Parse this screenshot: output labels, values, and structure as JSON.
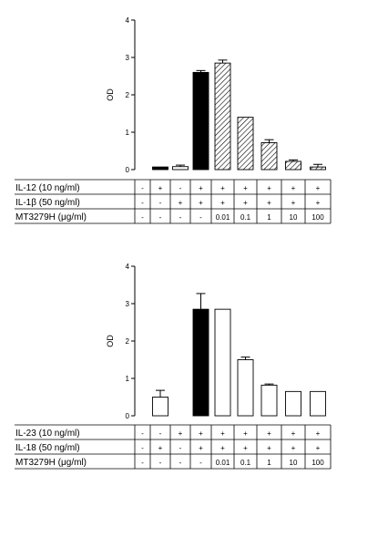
{
  "chart_data": [
    {
      "type": "bar",
      "ylabel": "OD",
      "ylim": [
        0,
        4
      ],
      "yticks": [
        "0",
        "1",
        "2",
        "3",
        "4"
      ],
      "categories": [
        "1",
        "2",
        "3",
        "4",
        "5",
        "6",
        "7",
        "8",
        "9"
      ],
      "values": [
        0,
        0.07,
        0.08,
        2.6,
        2.85,
        1.4,
        0.72,
        0.22,
        0.07
      ],
      "errors": [
        0,
        0,
        0.04,
        0.05,
        0.08,
        0,
        0.08,
        0.04,
        0.07
      ],
      "fills": [
        "none",
        "solid",
        "open",
        "solid",
        "hatched",
        "hatched",
        "hatched",
        "hatched",
        "hatched"
      ],
      "table": [
        {
          "label": "IL-12 (10 ng/ml)",
          "cells": [
            "-",
            "+",
            "-",
            "+",
            "+",
            "+",
            "+",
            "+",
            "+"
          ]
        },
        {
          "label": "IL-1β (50 ng/ml)",
          "cells": [
            "-",
            "-",
            "+",
            "+",
            "+",
            "+",
            "+",
            "+",
            "+"
          ]
        },
        {
          "label": "MT3279H (μg/ml)",
          "cells": [
            "-",
            "-",
            "-",
            "-",
            "0.01",
            "0.1",
            "1",
            "10",
            "100"
          ]
        }
      ]
    },
    {
      "type": "bar",
      "ylabel": "OD",
      "ylim": [
        0,
        4
      ],
      "yticks": [
        "0",
        "1",
        "2",
        "3",
        "4"
      ],
      "categories": [
        "1",
        "2",
        "3",
        "4",
        "5",
        "6",
        "7",
        "8",
        "9"
      ],
      "values": [
        0,
        0.5,
        0,
        2.85,
        2.85,
        1.5,
        0.82,
        0.65,
        0.65
      ],
      "errors": [
        0,
        0.18,
        0,
        0.42,
        0,
        0.07,
        0.03,
        0,
        0
      ],
      "fills": [
        "none",
        "open",
        "none",
        "solid",
        "open",
        "open",
        "open",
        "open",
        "open"
      ],
      "table": [
        {
          "label": "IL-23 (10 ng/ml)",
          "cells": [
            "-",
            "-",
            "+",
            "+",
            "+",
            "+",
            "+",
            "+",
            "+"
          ]
        },
        {
          "label": "IL-18 (50 ng/ml)",
          "cells": [
            "-",
            "+",
            "-",
            "+",
            "+",
            "+",
            "+",
            "+",
            "+"
          ]
        },
        {
          "label": "MT3279H (μg/ml)",
          "cells": [
            "-",
            "-",
            "-",
            "-",
            "0.01",
            "0.1",
            "1",
            "10",
            "100"
          ]
        }
      ]
    }
  ]
}
